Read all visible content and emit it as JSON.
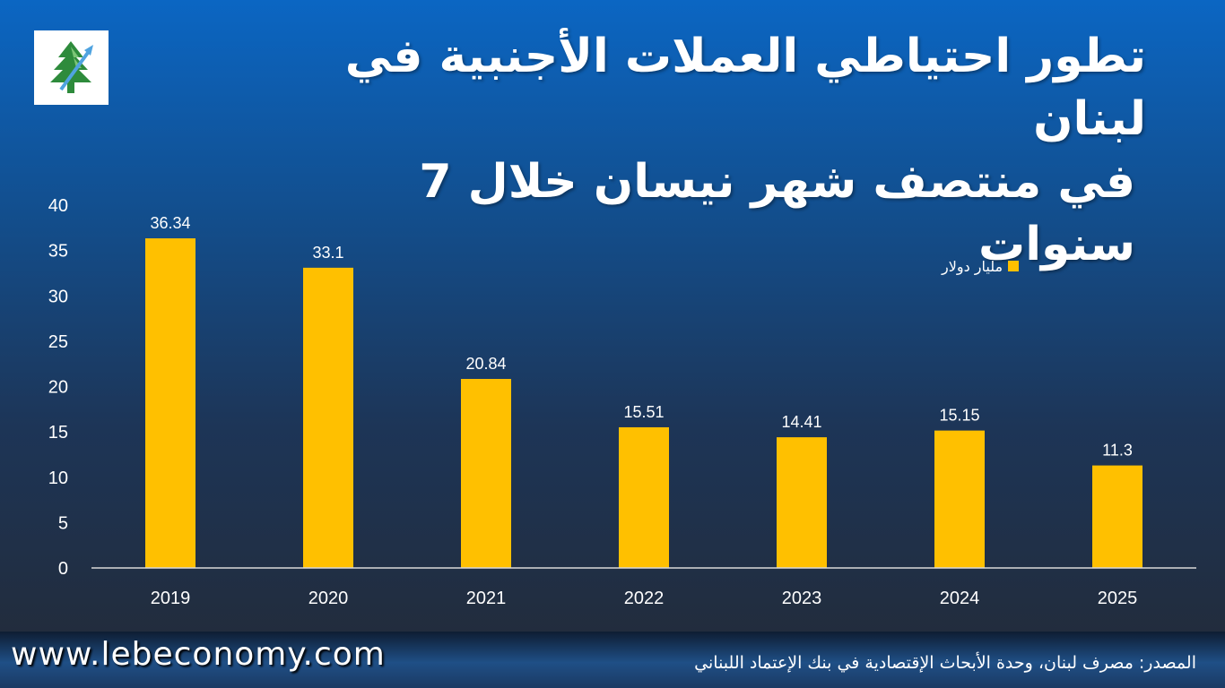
{
  "title": {
    "line1": "تطور احتياطي العملات الأجنبية في لبنان",
    "line2": "في منتصف شهر نيسان خلال 7 سنوات"
  },
  "logo": {
    "icon": "cedar-tree-arrow-icon"
  },
  "legend": {
    "label": "مليار دولار"
  },
  "footer": {
    "website": "www.lebeconomy.com",
    "source": "المصدر: مصرف لبنان، وحدة الأبحاث الإقتصادية في بنك الإعتماد اللبناني"
  },
  "colors": {
    "bar": "#ffc000",
    "text": "#ffffff",
    "axis": "#d9d9d9"
  },
  "chart_data": {
    "type": "bar",
    "categories": [
      "2019",
      "2020",
      "2021",
      "2022",
      "2023",
      "2024",
      "2025"
    ],
    "series": [
      {
        "name": "مليار دولار",
        "values": [
          36.34,
          33.1,
          20.84,
          15.51,
          14.41,
          15.15,
          11.3
        ],
        "labels": [
          "36.34",
          "33.1",
          "20.84",
          "15.51",
          "14.41",
          "15.15",
          "11.3"
        ]
      }
    ],
    "yticks": [
      "0",
      "5",
      "10",
      "15",
      "20",
      "25",
      "30",
      "35",
      "40"
    ],
    "ylim": [
      0,
      40
    ],
    "xlabel": "",
    "ylabel": "",
    "grid": false,
    "legend_position": "top-right"
  }
}
